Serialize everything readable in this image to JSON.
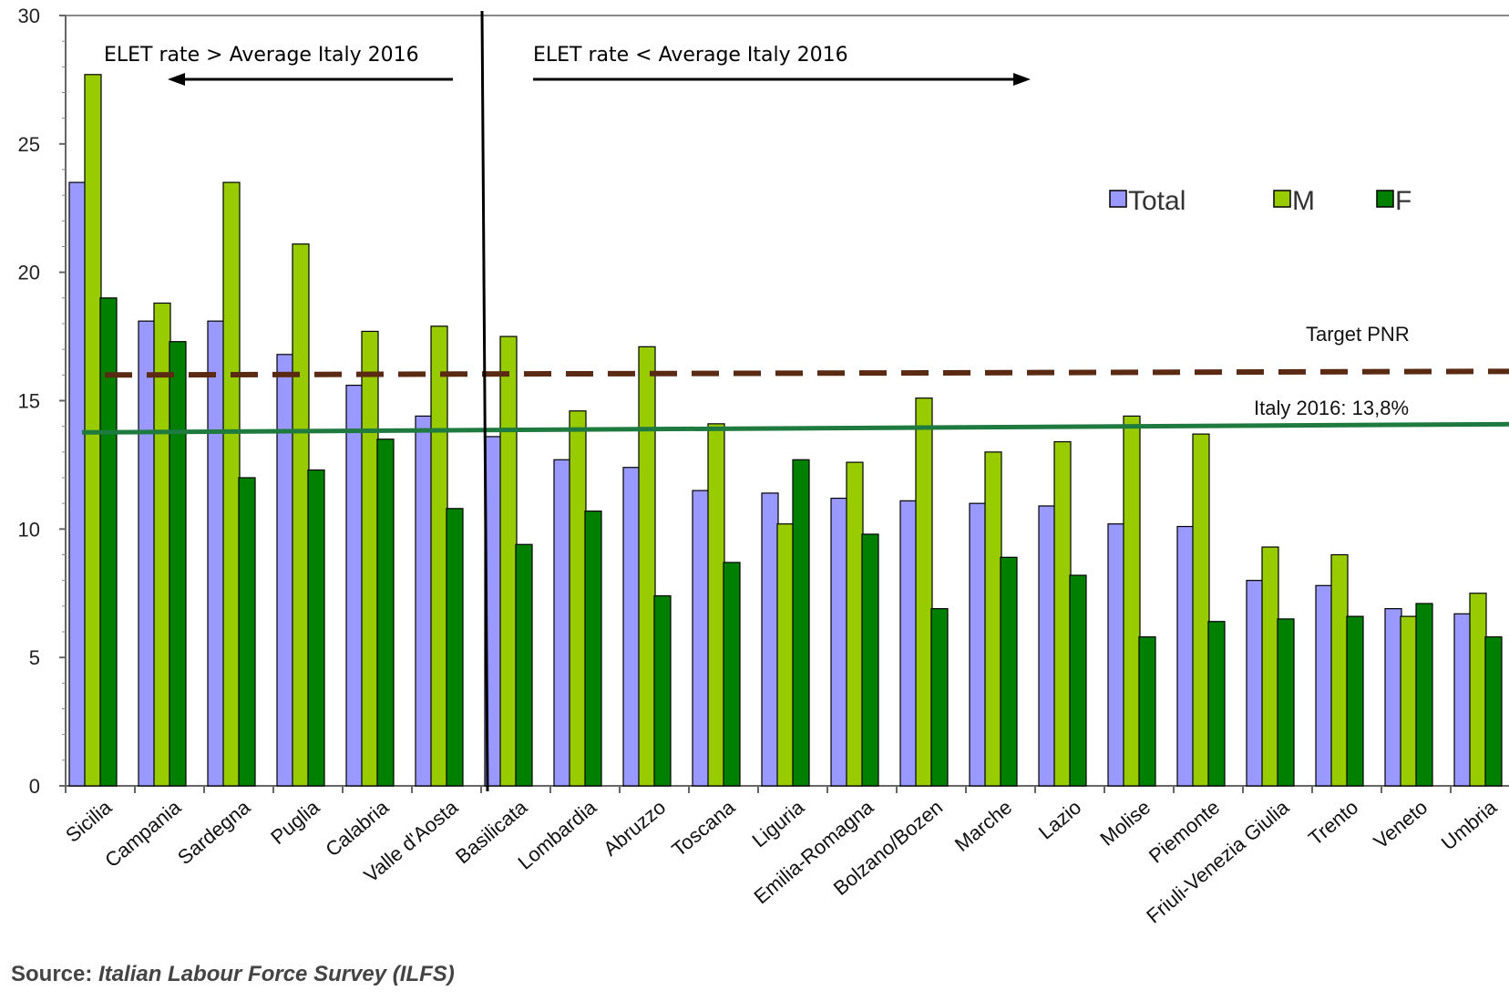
{
  "chart_data": {
    "type": "bar",
    "categories": [
      "Sicilia",
      "Campania",
      "Sardegna",
      "Puglia",
      "Calabria",
      "Valle d'Aosta",
      "Basilicata",
      "Lombardia",
      "Abruzzo",
      "Toscana",
      "Liguria",
      "Emilia-Romagna",
      "Bolzano/Bozen",
      "Marche",
      "Lazio",
      "Molise",
      "Piemonte",
      "Friuli-Venezia Giulia",
      "Trento",
      "Veneto",
      "Umbria"
    ],
    "series": [
      {
        "name": "Total",
        "color": "#9999ff",
        "values": [
          23.5,
          18.1,
          18.1,
          16.8,
          15.6,
          14.4,
          13.6,
          12.7,
          12.4,
          11.5,
          11.4,
          11.2,
          11.1,
          11.0,
          10.9,
          10.2,
          10.1,
          8.0,
          7.8,
          6.9,
          6.7
        ]
      },
      {
        "name": "M",
        "color": "#99cc00",
        "values": [
          27.7,
          18.8,
          23.5,
          21.1,
          17.7,
          17.9,
          17.5,
          14.6,
          17.1,
          14.1,
          10.2,
          12.6,
          15.1,
          13.0,
          13.4,
          14.4,
          13.7,
          9.3,
          9.0,
          6.6,
          7.5
        ]
      },
      {
        "name": "F",
        "color": "#008000",
        "values": [
          19.0,
          17.3,
          12.0,
          12.3,
          13.5,
          10.8,
          9.4,
          10.7,
          7.4,
          8.7,
          12.7,
          9.8,
          6.9,
          8.9,
          8.2,
          5.8,
          6.4,
          6.5,
          6.6,
          7.1,
          5.8
        ]
      }
    ],
    "yticks": [
      0,
      5,
      10,
      15,
      20,
      25,
      30
    ],
    "ylim": [
      0,
      30
    ],
    "legend_position": "top-right",
    "reference_lines": [
      {
        "label": "Target PNR",
        "value": 16,
        "style": "dashed",
        "color": "#5a2a12"
      },
      {
        "label": "Italy  2016: 13,8%",
        "value": 13.8,
        "style": "solid",
        "color": "#1e7a3e"
      }
    ],
    "annotations": {
      "above": "ELET rate > Average Italy 2016",
      "below": "ELET rate < Average Italy 2016"
    }
  },
  "source": {
    "label": "Source:",
    "text": "Italian Labour Force Survey (ILFS)"
  }
}
